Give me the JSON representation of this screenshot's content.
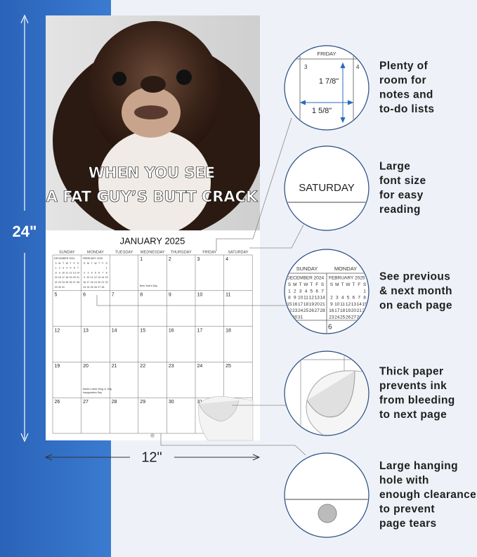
{
  "left_dimension": "24\"",
  "bottom_dimension": "12\"",
  "calendar": {
    "photo_caption": [
      "WHEN YOU SEE",
      "A FAT GUY’S BUTT CRACK"
    ],
    "title": "JANUARY 2025",
    "weekdays": [
      "SUNDAY",
      "MONDAY",
      "TUESDAY",
      "WEDNESDAY",
      "THURSDAY",
      "FRIDAY",
      "SATURDAY"
    ],
    "weeks": [
      [
        null,
        null,
        null,
        1,
        2,
        3,
        4
      ],
      [
        5,
        6,
        7,
        8,
        9,
        10,
        11
      ],
      [
        12,
        13,
        14,
        15,
        16,
        17,
        18
      ],
      [
        19,
        20,
        21,
        22,
        23,
        24,
        25
      ],
      [
        26,
        27,
        28,
        29,
        30,
        31,
        null
      ]
    ],
    "holidays": [
      {
        "date": 1,
        "lines": [
          "New Year's Day"
        ]
      },
      {
        "date": 20,
        "lines": [
          "Martin Luther King Jr. Day",
          "Inauguration Day"
        ]
      }
    ],
    "mini_calendars": [
      {
        "title": "DECEMBER 2024",
        "weekdays": [
          "S",
          "M",
          "T",
          "W",
          "T",
          "F",
          "S"
        ],
        "weeks": [
          [
            1,
            2,
            3,
            4,
            5,
            6,
            7
          ],
          [
            8,
            9,
            10,
            11,
            12,
            13,
            14
          ],
          [
            15,
            16,
            17,
            18,
            19,
            20,
            21
          ],
          [
            22,
            23,
            24,
            25,
            26,
            27,
            28
          ],
          [
            29,
            30,
            31,
            null,
            null,
            null,
            null
          ]
        ]
      },
      {
        "title": "FEBRUARY 2025",
        "weekdays": [
          "S",
          "M",
          "T",
          "W",
          "T",
          "F",
          "S"
        ],
        "weeks": [
          [
            null,
            null,
            null,
            null,
            null,
            null,
            1
          ],
          [
            2,
            3,
            4,
            5,
            6,
            7,
            8
          ],
          [
            9,
            10,
            11,
            12,
            13,
            14,
            15
          ],
          [
            16,
            17,
            18,
            19,
            20,
            21,
            22
          ],
          [
            23,
            24,
            25,
            26,
            27,
            28,
            null
          ]
        ]
      }
    ]
  },
  "callouts": {
    "notes_box": {
      "day": "FRIDAY",
      "dates": [
        3,
        4
      ],
      "height": "1 7/8\"",
      "width": "1 5/8\""
    },
    "font_size": {
      "day": "SATURDAY"
    },
    "next_month": {
      "days": [
        "SUNDAY",
        "MONDAY"
      ],
      "date": 6
    }
  },
  "features": [
    {
      "lines": [
        "Plenty of",
        "room for",
        "notes and",
        "to-do lists"
      ]
    },
    {
      "lines": [
        "Large",
        "font size",
        "for easy",
        "reading"
      ]
    },
    {
      "lines": [
        "See previous",
        "& next month",
        "on each page"
      ]
    },
    {
      "lines": [
        "Thick paper",
        "prevents ink",
        "from bleeding",
        "to next page"
      ]
    },
    {
      "lines": [
        "Large hanging",
        "hole with",
        "enough clearance",
        "to prevent",
        "page tears"
      ]
    }
  ]
}
